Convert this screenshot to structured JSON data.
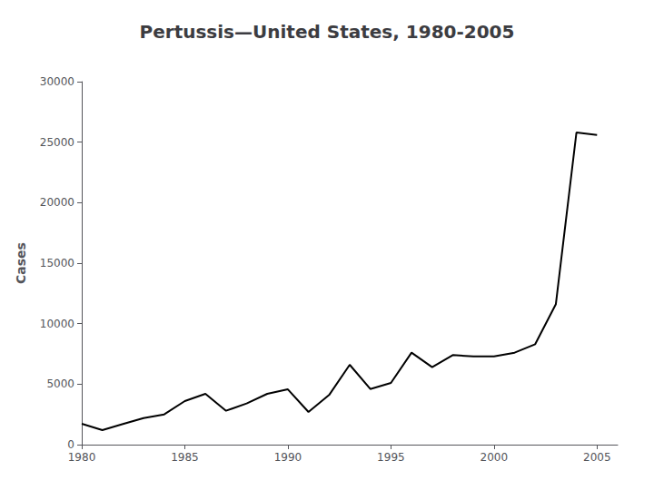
{
  "chart_data": {
    "type": "line",
    "title": "Pertussis—United States, 1980-2005",
    "ylabel": "Cases",
    "x": [
      1980,
      1981,
      1982,
      1983,
      1984,
      1985,
      1986,
      1987,
      1988,
      1989,
      1990,
      1991,
      1992,
      1993,
      1994,
      1995,
      1996,
      1997,
      1998,
      1999,
      2000,
      2001,
      2002,
      2003,
      2004,
      2005
    ],
    "values": [
      1730,
      1200,
      1700,
      2200,
      2500,
      3600,
      4200,
      2800,
      3400,
      4200,
      4570,
      2700,
      4100,
      6600,
      4600,
      5100,
      7600,
      6400,
      7400,
      7300,
      7300,
      7600,
      8300,
      11600,
      25800,
      25600
    ],
    "color": "#000000",
    "xlim": [
      1980,
      2006
    ],
    "xticks": [
      1980,
      1985,
      1990,
      1995,
      2000,
      2005
    ],
    "ylim": [
      0,
      30000
    ],
    "yticks": [
      0,
      5000,
      10000,
      15000,
      20000,
      25000,
      30000
    ],
    "grid": false
  }
}
